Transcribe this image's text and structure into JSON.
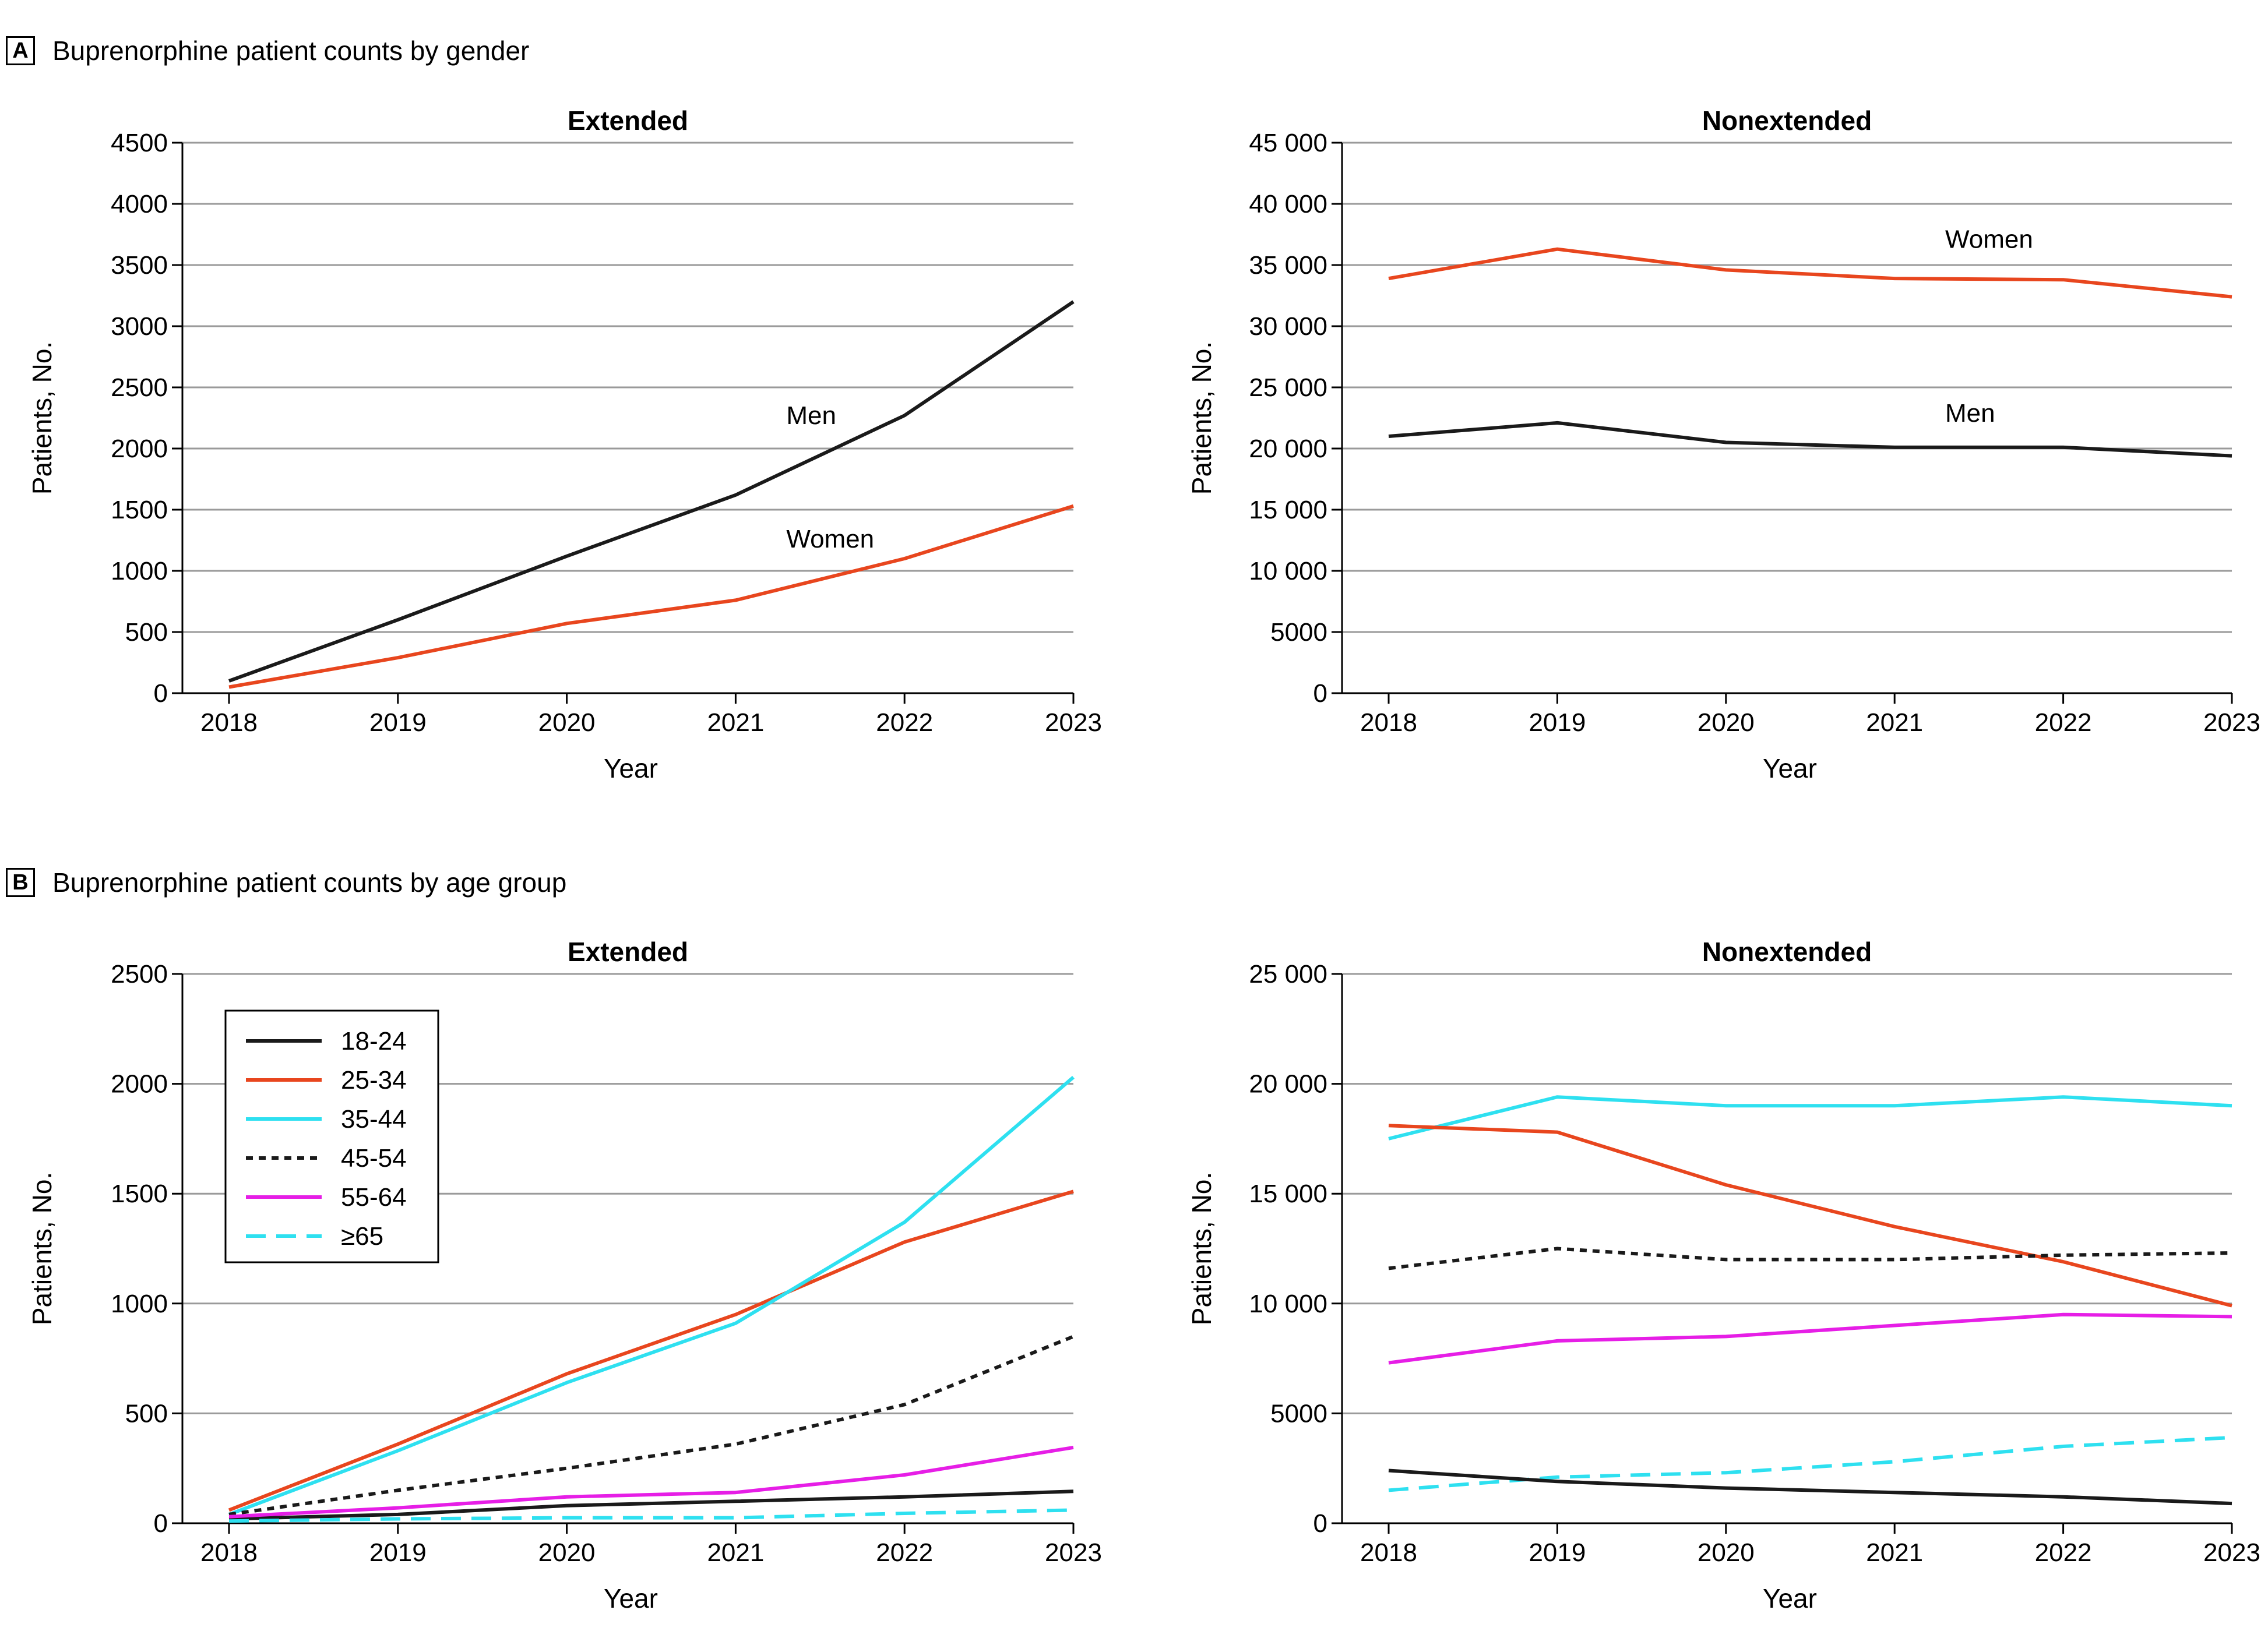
{
  "panels": {
    "a": {
      "letter": "A",
      "title": "Buprenorphine patient counts by gender"
    },
    "b": {
      "letter": "B",
      "title": "Buprenorphine patient counts by age group"
    }
  },
  "chart_data": [
    {
      "id": "a-extended",
      "type": "line",
      "title": "Extended",
      "xlabel": "Year",
      "ylabel": "Patients, No.",
      "categories": [
        "2018",
        "2019",
        "2020",
        "2021",
        "2022",
        "2023"
      ],
      "ylim": [
        0,
        4500
      ],
      "yticks": [
        0,
        500,
        1000,
        1500,
        2000,
        2500,
        3000,
        3500,
        4000,
        4500
      ],
      "ytick_labels": [
        "0",
        "500",
        "1000",
        "1500",
        "2000",
        "2500",
        "3000",
        "3500",
        "4000",
        "4500"
      ],
      "grid": true,
      "series": [
        {
          "name": "Men",
          "color": "#1a1a1a",
          "dash": "solid",
          "values": [
            100,
            600,
            1120,
            1620,
            2270,
            3200
          ],
          "label_at": [
            2021.3,
            2200
          ]
        },
        {
          "name": "Women",
          "color": "#e8461e",
          "dash": "solid",
          "values": [
            50,
            290,
            570,
            760,
            1100,
            1530
          ],
          "label_at": [
            2021.3,
            1190
          ]
        }
      ]
    },
    {
      "id": "a-nonextended",
      "type": "line",
      "title": "Nonextended",
      "xlabel": "Year",
      "ylabel": "Patients, No.",
      "categories": [
        "2018",
        "2019",
        "2020",
        "2021",
        "2022",
        "2023"
      ],
      "ylim": [
        0,
        45000
      ],
      "yticks": [
        0,
        5000,
        10000,
        15000,
        20000,
        25000,
        30000,
        35000,
        40000,
        45000
      ],
      "ytick_labels": [
        "0",
        "5000",
        "10 000",
        "15 000",
        "20 000",
        "25 000",
        "30 000",
        "35 000",
        "40 000",
        "45 000"
      ],
      "grid": true,
      "series": [
        {
          "name": "Women",
          "color": "#e8461e",
          "dash": "solid",
          "values": [
            33900,
            36300,
            34600,
            33900,
            33800,
            32400
          ],
          "label_at": [
            2021.3,
            36400
          ]
        },
        {
          "name": "Men",
          "color": "#1a1a1a",
          "dash": "solid",
          "values": [
            21000,
            22100,
            20500,
            20100,
            20100,
            19400
          ],
          "label_at": [
            2021.3,
            22200
          ]
        }
      ]
    },
    {
      "id": "b-extended",
      "type": "line",
      "title": "Extended",
      "xlabel": "Year",
      "ylabel": "Patients, No.",
      "categories": [
        "2018",
        "2019",
        "2020",
        "2021",
        "2022",
        "2023"
      ],
      "ylim": [
        0,
        2500
      ],
      "yticks": [
        0,
        500,
        1000,
        1500,
        2000,
        2500
      ],
      "ytick_labels": [
        "0",
        "500",
        "1000",
        "1500",
        "2000",
        "2500"
      ],
      "grid": true,
      "legend": "top-left",
      "series": [
        {
          "name": "18-24",
          "color": "#1a1a1a",
          "dash": "solid",
          "values": [
            20,
            40,
            80,
            100,
            120,
            145
          ]
        },
        {
          "name": "25-34",
          "color": "#e8461e",
          "dash": "solid",
          "values": [
            60,
            360,
            680,
            950,
            1280,
            1510
          ]
        },
        {
          "name": "35-44",
          "color": "#2ee0f0",
          "dash": "solid",
          "values": [
            40,
            330,
            640,
            910,
            1370,
            2030
          ]
        },
        {
          "name": "45-54",
          "color": "#1a1a1a",
          "dash": "dotted",
          "values": [
            40,
            150,
            250,
            360,
            540,
            850
          ]
        },
        {
          "name": "55-64",
          "color": "#e61ee6",
          "dash": "solid",
          "values": [
            30,
            70,
            120,
            140,
            220,
            345
          ]
        },
        {
          "name": "≥65",
          "color": "#2ee0f0",
          "dash": "dashed",
          "values": [
            10,
            20,
            25,
            25,
            45,
            60
          ]
        }
      ]
    },
    {
      "id": "b-nonextended",
      "type": "line",
      "title": "Nonextended",
      "xlabel": "Year",
      "ylabel": "Patients, No.",
      "categories": [
        "2018",
        "2019",
        "2020",
        "2021",
        "2022",
        "2023"
      ],
      "ylim": [
        0,
        25000
      ],
      "yticks": [
        0,
        5000,
        10000,
        15000,
        20000,
        25000
      ],
      "ytick_labels": [
        "0",
        "5000",
        "10 000",
        "15 000",
        "20 000",
        "25 000"
      ],
      "grid": true,
      "series": [
        {
          "name": "35-44",
          "color": "#2ee0f0",
          "dash": "solid",
          "values": [
            17500,
            19400,
            19000,
            19000,
            19400,
            19000
          ]
        },
        {
          "name": "25-34",
          "color": "#e8461e",
          "dash": "solid",
          "values": [
            18100,
            17800,
            15400,
            13500,
            11900,
            9900
          ]
        },
        {
          "name": "45-54",
          "color": "#1a1a1a",
          "dash": "dotted",
          "values": [
            11600,
            12500,
            12000,
            12000,
            12200,
            12300
          ]
        },
        {
          "name": "55-64",
          "color": "#e61ee6",
          "dash": "solid",
          "values": [
            7300,
            8300,
            8500,
            9000,
            9500,
            9400
          ]
        },
        {
          "name": "≥65",
          "color": "#2ee0f0",
          "dash": "dashed",
          "values": [
            1500,
            2100,
            2300,
            2800,
            3500,
            3900
          ]
        },
        {
          "name": "18-24",
          "color": "#1a1a1a",
          "dash": "solid",
          "values": [
            2400,
            1900,
            1600,
            1400,
            1200,
            900
          ]
        }
      ]
    }
  ]
}
